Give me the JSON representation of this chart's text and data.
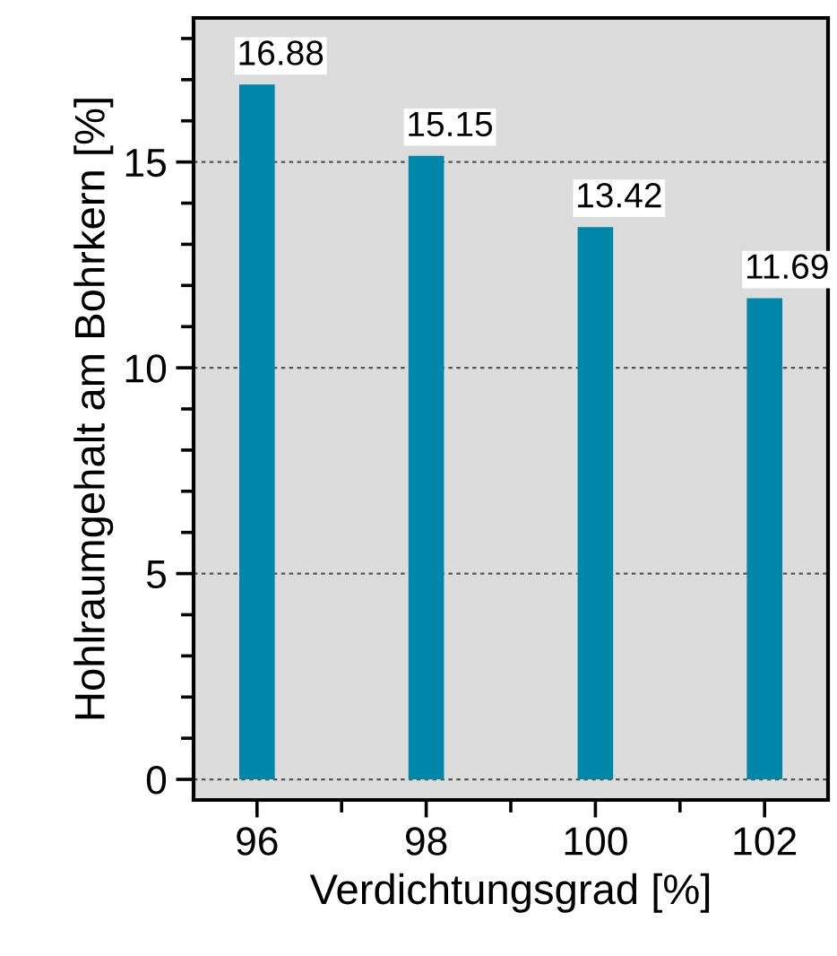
{
  "chart_data": {
    "type": "bar",
    "xlabel": "Verdichtungsgrad [%]",
    "ylabel": "Hohlraumgehalt am Bohrkern [%]",
    "x": [
      96,
      98,
      100,
      102
    ],
    "values": [
      16.88,
      15.15,
      13.42,
      11.69
    ],
    "color": "#0086a8",
    "data_labels": true,
    "xlim": [
      95.25,
      102.75
    ],
    "xticks": [
      96,
      {
        "value": 97,
        "label": null
      },
      98,
      {
        "value": 99,
        "label": null
      },
      100,
      {
        "value": 101,
        "label": null
      },
      102
    ],
    "ylim": [
      -0.5,
      18.5
    ],
    "yticks": [
      0,
      {
        "value": 1,
        "label": null
      },
      {
        "value": 2,
        "label": null
      },
      {
        "value": 3,
        "label": null
      },
      {
        "value": 4,
        "label": null
      },
      5,
      {
        "value": 6,
        "label": null
      },
      {
        "value": 7,
        "label": null
      },
      {
        "value": 8,
        "label": null
      },
      {
        "value": 9,
        "label": null
      },
      10,
      {
        "value": 11,
        "label": null
      },
      {
        "value": 12,
        "label": null
      },
      {
        "value": 13,
        "label": null
      },
      {
        "value": 14,
        "label": null
      },
      15,
      {
        "value": 16,
        "label": null
      },
      {
        "value": 17,
        "label": null
      },
      {
        "value": 18,
        "label": null
      }
    ],
    "grid": "y"
  }
}
